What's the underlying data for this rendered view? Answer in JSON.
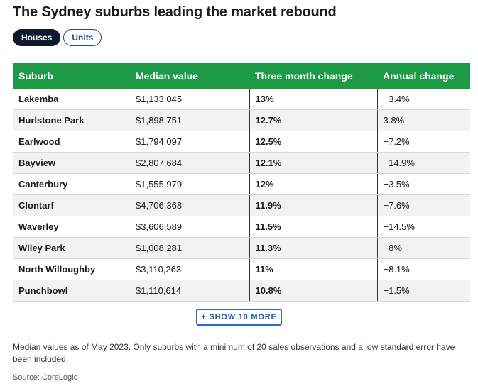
{
  "title": "The Sydney suburbs leading the market rebound",
  "toggles": {
    "houses": "Houses",
    "units": "Units"
  },
  "table": {
    "headers": [
      "Suburb",
      "Median value",
      "Three month change",
      "Annual change"
    ],
    "rows": [
      [
        "Lakemba",
        "$1,133,045",
        "13%",
        "−3.4%"
      ],
      [
        "Hurlstone Park",
        "$1,898,751",
        "12.7%",
        "3.8%"
      ],
      [
        "Earlwood",
        "$1,794,097",
        "12.5%",
        "−7.2%"
      ],
      [
        "Bayview",
        "$2,807,684",
        "12.1%",
        "−14.9%"
      ],
      [
        "Canterbury",
        "$1,555,979",
        "12%",
        "−3.5%"
      ],
      [
        "Clontarf",
        "$4,706,368",
        "11.9%",
        "−7.6%"
      ],
      [
        "Waverley",
        "$3,606,589",
        "11.5%",
        "−14.5%"
      ],
      [
        "Wiley Park",
        "$1,008,281",
        "11.3%",
        "−8%"
      ],
      [
        "North Willoughby",
        "$3,110,263",
        "11%",
        "−8.1%"
      ],
      [
        "Punchbowl",
        "$1,110,614",
        "10.8%",
        "−1.5%"
      ]
    ]
  },
  "show_more": "+ SHOW 10 MORE",
  "note": "Median values as of May 2023. Only suburbs with a minimum of 20 sales observations and a low standard error have been included.",
  "source": "Source: CoreLogic",
  "colors": {
    "header_green": "#1c9a45",
    "toggle_active": "#0e1a2b",
    "link_blue": "#1f5aab"
  }
}
